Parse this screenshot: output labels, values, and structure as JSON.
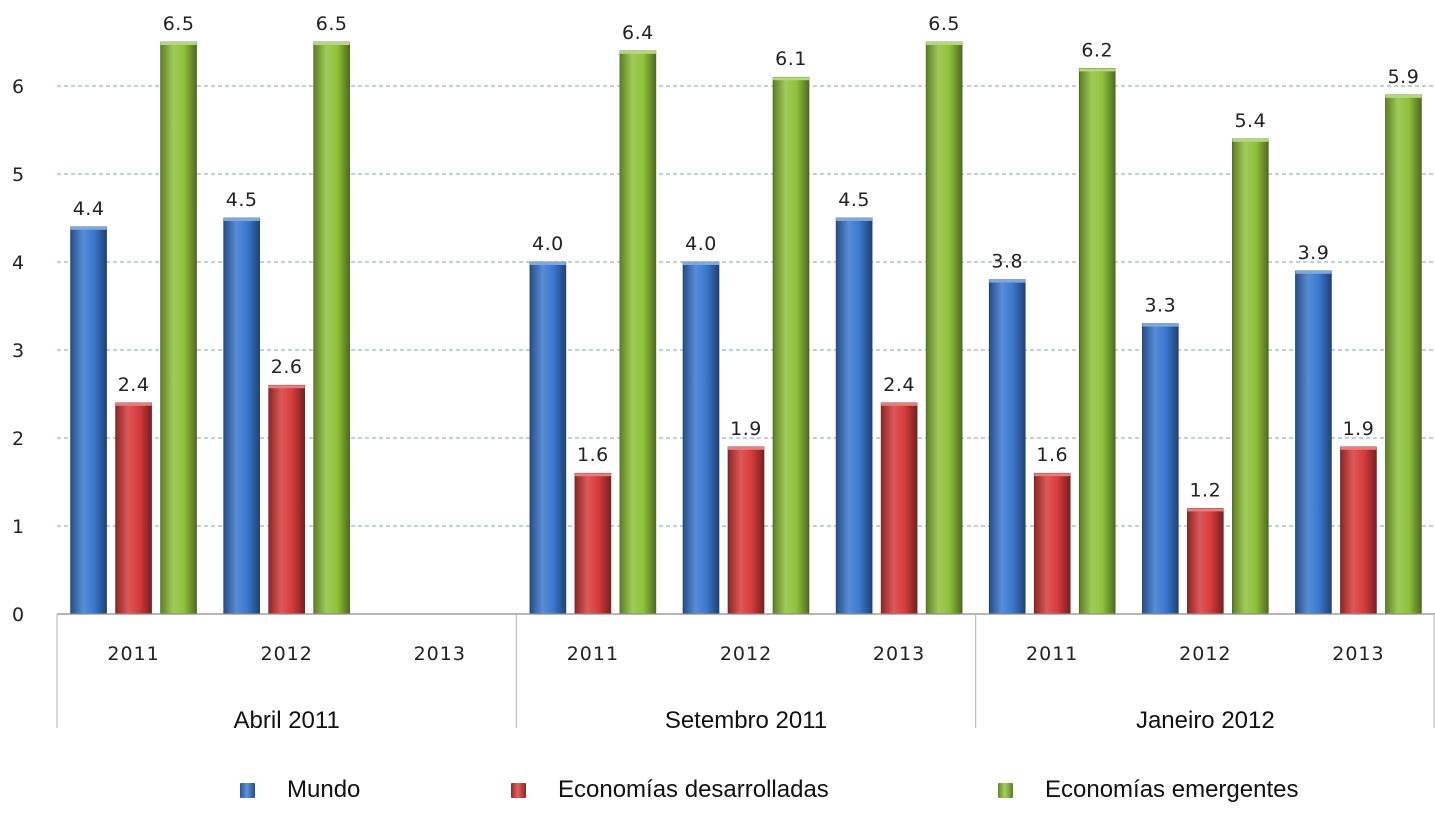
{
  "chart_data": {
    "type": "bar",
    "title": "",
    "xlabel": "",
    "ylabel": "",
    "ylim": [
      0,
      6.5
    ],
    "yticks": [
      0,
      1,
      2,
      3,
      4,
      5,
      6
    ],
    "grid": true,
    "legend_position": "bottom",
    "groups": [
      {
        "name": "Abril 2011",
        "categories": [
          "2011",
          "2012",
          "2013"
        ]
      },
      {
        "name": "Setembro 2011",
        "categories": [
          "2011",
          "2012",
          "2013"
        ]
      },
      {
        "name": "Janeiro 2012",
        "categories": [
          "2011",
          "2012",
          "2013"
        ]
      }
    ],
    "categories": [
      "Abril 2011 / 2011",
      "Abril 2011 / 2012",
      "Abril 2011 / 2013",
      "Setembro 2011 / 2011",
      "Setembro 2011 / 2012",
      "Setembro 2011 / 2013",
      "Janeiro 2012 / 2011",
      "Janeiro 2012 / 2012",
      "Janeiro 2012 / 2013"
    ],
    "series": [
      {
        "name": "Mundo",
        "color": "#3a78cf",
        "values": [
          4.4,
          4.5,
          null,
          4.0,
          4.0,
          4.5,
          3.8,
          3.3,
          3.9
        ],
        "labels": [
          "4.4",
          "4.5",
          "",
          "4.0",
          "4.0",
          "4.5",
          "3.8",
          "3.3",
          "3.9"
        ]
      },
      {
        "name": "Economías desarrolladas",
        "color": "#d83b3b",
        "values": [
          2.4,
          2.6,
          null,
          1.6,
          1.9,
          2.4,
          1.6,
          1.2,
          1.9
        ],
        "labels": [
          "2.4",
          "2.6",
          "",
          "1.6",
          "1.9",
          "2.4",
          "1.6",
          "1.2",
          "1.9"
        ]
      },
      {
        "name": "Economías emergentes",
        "color": "#8fc23a",
        "values": [
          6.5,
          6.5,
          null,
          6.4,
          6.1,
          6.5,
          6.2,
          5.4,
          5.9
        ],
        "labels": [
          "6.5",
          "6.5",
          "",
          "6.4",
          "6.1",
          "6.5",
          "6.2",
          "5.4",
          "5.9"
        ]
      }
    ]
  }
}
